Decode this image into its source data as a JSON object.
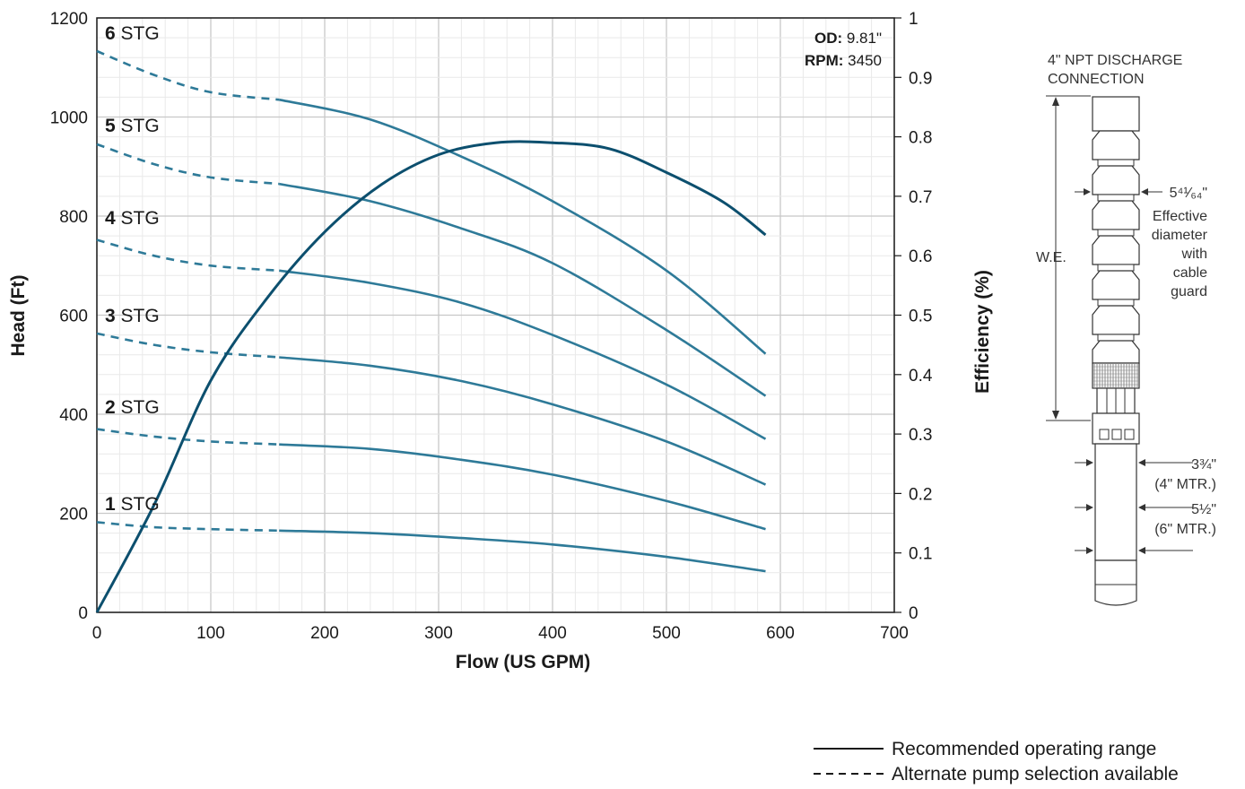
{
  "chart_data": {
    "type": "line",
    "xlabel": "Flow (US GPM)",
    "ylabel": "Head (Ft)",
    "y2label": "Efficiency (%)",
    "xlim": [
      0,
      700
    ],
    "ylim": [
      0,
      1200
    ],
    "y2lim": [
      0,
      1
    ],
    "xticks": [
      "0",
      "100",
      "200",
      "300",
      "400",
      "500",
      "600",
      "700"
    ],
    "yticks": [
      "0",
      "200",
      "400",
      "600",
      "800",
      "1000",
      "1200"
    ],
    "y2ticks": [
      "0",
      "0.1",
      "0.2",
      "0.3",
      "0.4",
      "0.5",
      "0.6",
      "0.7",
      "0.8",
      "0.9",
      "1"
    ],
    "grid": true,
    "series": [
      {
        "name": "1",
        "axis": "head",
        "dashed_until": 160,
        "color": "#2e7a98",
        "points": [
          [
            0,
            182
          ],
          [
            50,
            172
          ],
          [
            100,
            168
          ],
          [
            160,
            165
          ],
          [
            240,
            160
          ],
          [
            320,
            150
          ],
          [
            400,
            137
          ],
          [
            500,
            112
          ],
          [
            587,
            83
          ]
        ]
      },
      {
        "name": "2",
        "axis": "head",
        "dashed_until": 160,
        "color": "#2e7a98",
        "points": [
          [
            0,
            370
          ],
          [
            50,
            355
          ],
          [
            100,
            345
          ],
          [
            160,
            339
          ],
          [
            240,
            330
          ],
          [
            320,
            308
          ],
          [
            400,
            278
          ],
          [
            500,
            225
          ],
          [
            587,
            168
          ]
        ]
      },
      {
        "name": "3",
        "axis": "head",
        "dashed_until": 160,
        "color": "#2e7a98",
        "points": [
          [
            0,
            563
          ],
          [
            50,
            540
          ],
          [
            100,
            525
          ],
          [
            160,
            515
          ],
          [
            240,
            498
          ],
          [
            320,
            467
          ],
          [
            400,
            420
          ],
          [
            500,
            345
          ],
          [
            587,
            258
          ]
        ]
      },
      {
        "name": "4",
        "axis": "head",
        "dashed_until": 160,
        "color": "#2e7a98",
        "points": [
          [
            0,
            752
          ],
          [
            50,
            720
          ],
          [
            100,
            700
          ],
          [
            160,
            690
          ],
          [
            240,
            665
          ],
          [
            320,
            625
          ],
          [
            400,
            560
          ],
          [
            500,
            460
          ],
          [
            587,
            350
          ]
        ]
      },
      {
        "name": "5",
        "axis": "head",
        "dashed_until": 160,
        "color": "#2e7a98",
        "points": [
          [
            0,
            945
          ],
          [
            50,
            905
          ],
          [
            100,
            878
          ],
          [
            160,
            865
          ],
          [
            240,
            830
          ],
          [
            320,
            775
          ],
          [
            400,
            705
          ],
          [
            500,
            570
          ],
          [
            587,
            437
          ]
        ]
      },
      {
        "name": "6",
        "axis": "head",
        "dashed_until": 160,
        "color": "#2e7a98",
        "points": [
          [
            0,
            1133
          ],
          [
            50,
            1085
          ],
          [
            100,
            1050
          ],
          [
            160,
            1035
          ],
          [
            240,
            995
          ],
          [
            320,
            920
          ],
          [
            400,
            830
          ],
          [
            500,
            690
          ],
          [
            587,
            522
          ]
        ]
      },
      {
        "axis": "efficiency",
        "dashed_until": 0,
        "color": "#0c4f6e",
        "points": [
          [
            0,
            0
          ],
          [
            50,
            0.18
          ],
          [
            100,
            0.39
          ],
          [
            150,
            0.53
          ],
          [
            200,
            0.64
          ],
          [
            250,
            0.72
          ],
          [
            300,
            0.77
          ],
          [
            350,
            0.79
          ],
          [
            400,
            0.79
          ],
          [
            450,
            0.78
          ],
          [
            500,
            0.74
          ],
          [
            550,
            0.69
          ],
          [
            587,
            0.635
          ]
        ]
      }
    ],
    "stage_labels": [
      {
        "num": "6",
        "suffix": " STG",
        "head": 1135
      },
      {
        "num": "5",
        "suffix": " STG",
        "head": 948
      },
      {
        "num": "4",
        "suffix": " STG",
        "head": 762
      },
      {
        "num": "3",
        "suffix": " STG",
        "head": 565
      },
      {
        "num": "2",
        "suffix": " STG",
        "head": 380
      },
      {
        "num": "1",
        "suffix": " STG",
        "head": 185
      }
    ]
  },
  "info": {
    "od_label": "OD:",
    "od_value": " 9.81\"",
    "rpm_label": "RPM:",
    "rpm_value": " 3450"
  },
  "pump": {
    "discharge_line1": "4\" NPT DISCHARGE",
    "discharge_line2": "CONNECTION",
    "we_label": "W.E.",
    "diameter_value": "5⁴¹⁄₆₄\"",
    "diameter_desc": [
      "Effective",
      "diameter",
      "with",
      "cable",
      "guard"
    ],
    "motor4_value": "3¾\"",
    "motor4_label": "(4\" MTR.)",
    "motor6_value": "5½\"",
    "motor6_label": "(6\" MTR.)"
  },
  "legend": {
    "solid": "Recommended operating range",
    "dashed": "Alternate pump selection available"
  }
}
